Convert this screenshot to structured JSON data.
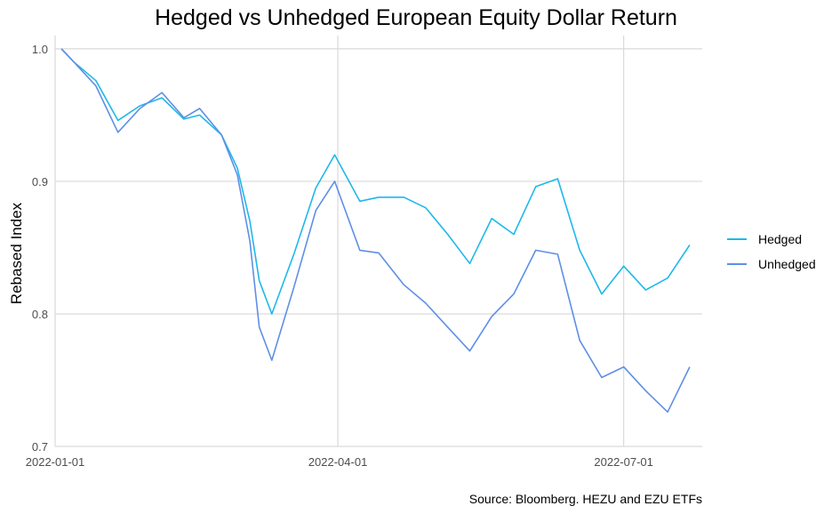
{
  "chart_data": {
    "type": "line",
    "title": "Hedged vs Unhedged European Equity Dollar Return",
    "xlabel": "",
    "ylabel": "Rebased Index",
    "source": "Source: Bloomberg. HEZU and EZU ETFs",
    "x_ticks": [
      "2022-01-01",
      "2022-04-01",
      "2022-07-01"
    ],
    "y_ticks": [
      "0.7",
      "0.8",
      "0.9",
      "1.0"
    ],
    "xlim": [
      "2022-01-01",
      "2022-07-26"
    ],
    "ylim": [
      0.7,
      1.01
    ],
    "grid": true,
    "legend_position": "right",
    "dates": [
      "2022-01-03",
      "2022-01-07",
      "2022-01-14",
      "2022-01-21",
      "2022-01-28",
      "2022-02-04",
      "2022-02-11",
      "2022-02-16",
      "2022-02-23",
      "2022-02-28",
      "2022-03-04",
      "2022-03-07",
      "2022-03-11",
      "2022-03-18",
      "2022-03-25",
      "2022-03-31",
      "2022-04-08",
      "2022-04-14",
      "2022-04-22",
      "2022-04-29",
      "2022-05-06",
      "2022-05-13",
      "2022-05-20",
      "2022-05-27",
      "2022-06-03",
      "2022-06-10",
      "2022-06-17",
      "2022-06-24",
      "2022-07-01",
      "2022-07-08",
      "2022-07-15",
      "2022-07-22"
    ],
    "series": [
      {
        "name": "Hedged",
        "color": "#1EB8EB",
        "values": [
          1.0,
          0.99,
          0.976,
          0.946,
          0.957,
          0.963,
          0.947,
          0.95,
          0.935,
          0.91,
          0.87,
          0.825,
          0.8,
          0.845,
          0.895,
          0.92,
          0.885,
          0.888,
          0.888,
          0.88,
          0.86,
          0.838,
          0.872,
          0.86,
          0.896,
          0.902,
          0.848,
          0.815,
          0.836,
          0.818,
          0.827,
          0.852
        ]
      },
      {
        "name": "Unhedged",
        "color": "#5E8FE6",
        "values": [
          1.0,
          0.99,
          0.972,
          0.937,
          0.955,
          0.967,
          0.948,
          0.955,
          0.935,
          0.905,
          0.855,
          0.79,
          0.765,
          0.82,
          0.878,
          0.9,
          0.848,
          0.846,
          0.822,
          0.808,
          0.79,
          0.772,
          0.798,
          0.815,
          0.848,
          0.845,
          0.78,
          0.752,
          0.76,
          0.742,
          0.726,
          0.76
        ]
      }
    ]
  }
}
